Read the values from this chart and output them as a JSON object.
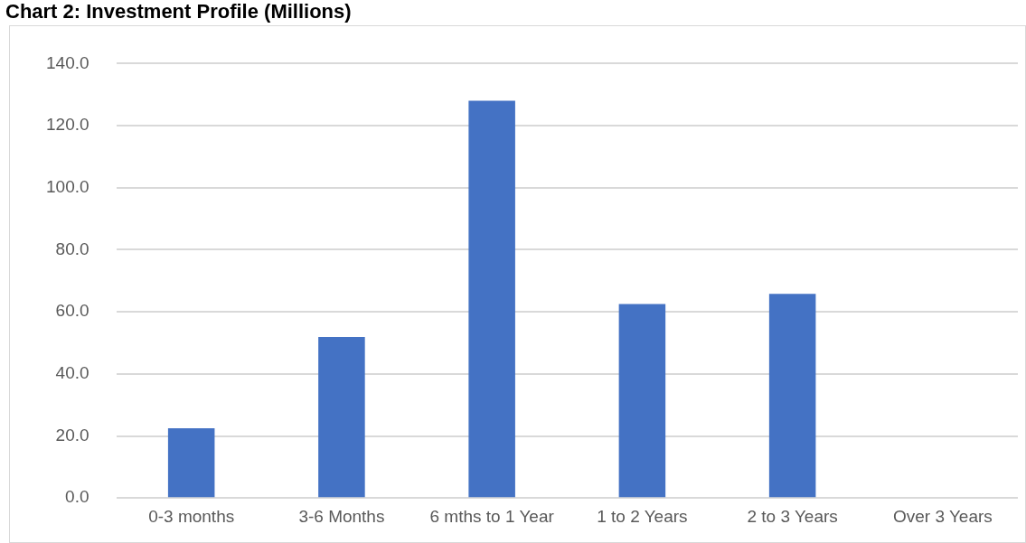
{
  "chart_data": {
    "type": "bar",
    "title": "Chart 2: Investment Profile (Millions)",
    "categories": [
      "0-3 months",
      "3-6 Months",
      "6 mths to 1 Year",
      "1 to 2 Years",
      "2 to 3 Years",
      "Over 3 Years"
    ],
    "values": [
      22.5,
      51.9,
      128,
      62.5,
      65.8,
      0
    ],
    "color": "#4472c4",
    "ylim": [
      0,
      140
    ],
    "yticks": [
      {
        "value": 0,
        "label": "0.0"
      },
      {
        "value": 20,
        "label": "20.0"
      },
      {
        "value": 40,
        "label": "40.0"
      },
      {
        "value": 60,
        "label": "60.0"
      },
      {
        "value": 80,
        "label": "80.0"
      },
      {
        "value": 100,
        "label": "100.0"
      },
      {
        "value": 120,
        "label": "120.0"
      },
      {
        "value": 140,
        "label": "140.0"
      }
    ],
    "grid": "y",
    "legend": false
  }
}
